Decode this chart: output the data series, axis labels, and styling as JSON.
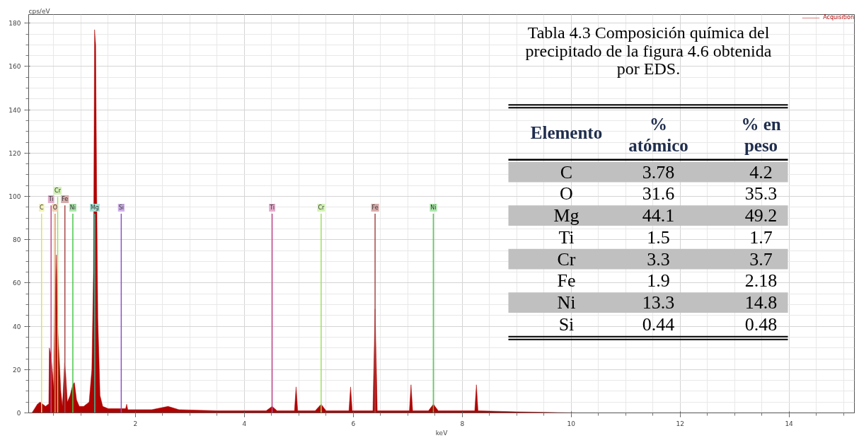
{
  "chart_data": [
    {
      "type": "area",
      "xlabel": "keV",
      "ylabel": "cps/eV",
      "xlim": [
        0.04,
        15.2
      ],
      "ylim": [
        0,
        184
      ],
      "xticks": [
        2,
        4,
        6,
        8,
        10,
        12,
        14
      ],
      "yticks": [
        0,
        20,
        40,
        60,
        80,
        100,
        120,
        140,
        160,
        180
      ],
      "grid": true,
      "legend": "top right",
      "series": [
        {
          "name": "Acquisition",
          "color": "#b00000",
          "x": [
            0.1,
            0.15,
            0.2,
            0.25,
            0.3,
            0.35,
            0.4,
            0.41,
            0.42,
            0.45,
            0.48,
            0.5,
            0.52,
            0.55,
            0.57,
            0.6,
            0.63,
            0.66,
            0.7,
            0.72,
            0.75,
            0.8,
            0.85,
            0.88,
            0.92,
            0.97,
            1.05,
            1.15,
            1.2,
            1.23,
            1.25,
            1.27,
            1.29,
            1.31,
            1.35,
            1.4,
            1.5,
            1.7,
            1.82,
            1.84,
            1.86,
            2.3,
            2.6,
            2.8,
            3.5,
            4.4,
            4.51,
            4.6,
            4.92,
            4.95,
            4.98,
            5.3,
            5.41,
            5.5,
            5.92,
            5.95,
            5.98,
            6.36,
            6.4,
            6.44,
            7.03,
            7.06,
            7.09,
            7.38,
            7.47,
            7.56,
            8.23,
            8.26,
            8.29,
            9.0,
            10.1
          ],
          "values": [
            0,
            2,
            4,
            5,
            4,
            3,
            4,
            4,
            30,
            27,
            18,
            10,
            50,
            73,
            41,
            26,
            10,
            3,
            23,
            18,
            5,
            8,
            13,
            14,
            6,
            3,
            3,
            5,
            20,
            65,
            177,
            170,
            100,
            44,
            8,
            3,
            2,
            2,
            2,
            4,
            1.5,
            1.5,
            3,
            1.5,
            1,
            1,
            3,
            1,
            1,
            12,
            1,
            1,
            4,
            1,
            1,
            12,
            1,
            1,
            48,
            1,
            1,
            13,
            1,
            1,
            4,
            1,
            1,
            13,
            1,
            0.5,
            0
          ]
        }
      ],
      "ref_lines": [
        {
          "axis": "x",
          "value": 0.277,
          "label": "C",
          "color": "#e0e060"
        },
        {
          "axis": "x",
          "value": 0.452,
          "label": "Ti",
          "color": "#c04c8c"
        },
        {
          "axis": "x",
          "value": 0.525,
          "label": "O",
          "color": "#e0905c"
        },
        {
          "axis": "x",
          "value": 0.573,
          "label": "Cr",
          "color": "#9ce05c"
        },
        {
          "axis": "x",
          "value": 0.705,
          "label": "Fe",
          "color": "#a84848"
        },
        {
          "axis": "x",
          "value": 0.851,
          "label": "Ni",
          "color": "#48c848"
        },
        {
          "axis": "x",
          "value": 1.254,
          "label": "Mg",
          "color": "#40c0a0"
        },
        {
          "axis": "x",
          "value": 1.74,
          "label": "Si",
          "color": "#9050c8"
        },
        {
          "axis": "x",
          "value": 4.51,
          "label": "Ti",
          "color": "#c04c8c"
        },
        {
          "axis": "x",
          "value": 5.41,
          "label": "Cr",
          "color": "#9ce05c"
        },
        {
          "axis": "x",
          "value": 6.4,
          "label": "Fe",
          "color": "#a84848"
        },
        {
          "axis": "x",
          "value": 7.47,
          "label": "Ni",
          "color": "#48c848"
        }
      ]
    },
    {
      "type": "other",
      "title": "Tabla 4.3 Composición química del precipitado de la figura 4.6 obtenida por EDS.",
      "xlabel": "Elemento",
      "data_labels": true,
      "categories": [
        "C",
        "O",
        "Mg",
        "Ti",
        "Cr",
        "Fe",
        "Ni",
        "Si"
      ],
      "series": [
        {
          "name": "% atómico",
          "values": [
            3.78,
            31.6,
            44.1,
            1.5,
            3.3,
            1.9,
            13.3,
            0.44
          ]
        },
        {
          "name": "% en peso",
          "values": [
            4.2,
            35.3,
            49.2,
            1.7,
            3.7,
            2.18,
            14.8,
            0.48
          ]
        }
      ]
    }
  ]
}
